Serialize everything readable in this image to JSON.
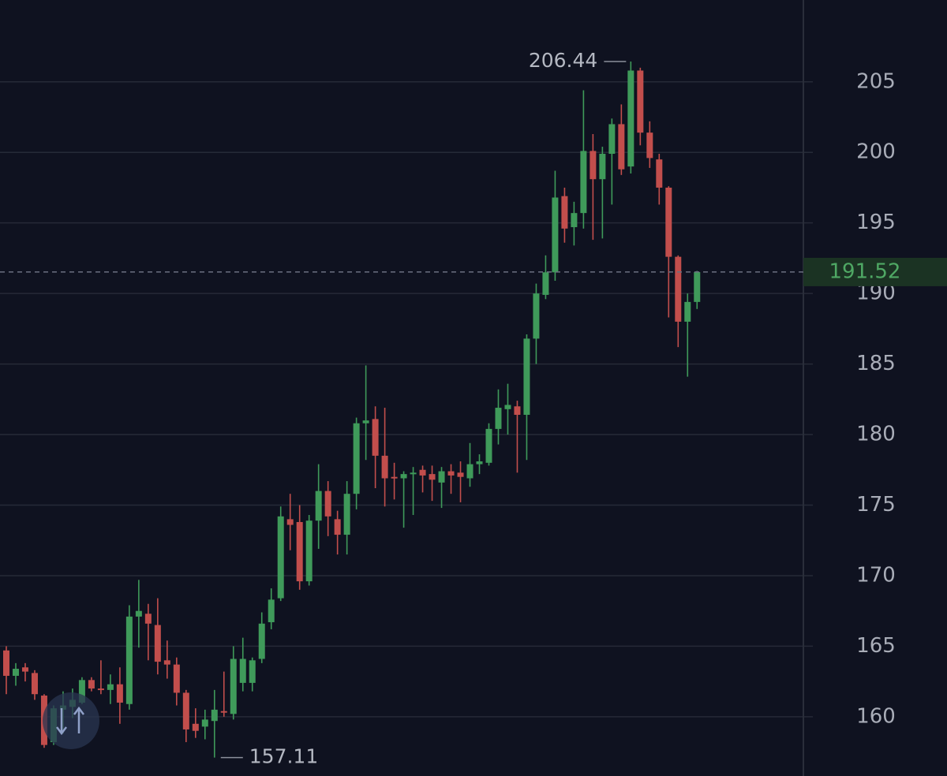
{
  "chart_data": {
    "type": "candlestick",
    "up_color": "#3f9a5a",
    "down_color": "#c24e4c",
    "grid": true,
    "ylim": [
      155.8,
      210.8
    ],
    "yticks": [
      160,
      165,
      170,
      175,
      180,
      185,
      190,
      195,
      200,
      205
    ],
    "last_price": 191.52,
    "max_label": 206.44,
    "min_label": 157.11,
    "open": [
      164.7,
      162.9,
      163.5,
      163.1,
      161.5,
      158.2,
      160.5,
      160.7,
      161.0,
      162.6,
      162.0,
      161.9,
      162.3,
      160.9,
      167.1,
      167.3,
      166.5,
      164.0,
      163.7,
      161.7,
      159.5,
      159.3,
      159.7,
      160.4,
      160.2,
      162.4,
      162.4,
      164.1,
      166.7,
      168.4,
      174.0,
      173.8,
      169.6,
      173.9,
      176.0,
      174.0,
      172.9,
      175.8,
      180.8,
      181.1,
      178.5,
      177.0,
      176.9,
      177.2,
      177.5,
      177.2,
      176.6,
      177.4,
      177.3,
      176.9,
      177.9,
      178.0,
      180.4,
      181.8,
      182.0,
      181.4,
      186.8,
      189.9,
      191.5,
      196.9,
      194.7,
      195.7,
      200.1,
      198.1,
      199.9,
      202.0,
      199.0,
      205.8,
      201.4,
      199.5,
      197.5,
      192.6,
      188.0,
      189.4
    ],
    "high": [
      165.0,
      163.8,
      163.8,
      163.3,
      161.6,
      160.8,
      161.8,
      162.0,
      162.8,
      162.8,
      164.0,
      163.0,
      163.5,
      167.9,
      169.7,
      168.0,
      168.4,
      165.4,
      164.2,
      161.9,
      160.6,
      160.5,
      161.9,
      163.2,
      165.0,
      165.6,
      164.2,
      167.4,
      169.1,
      174.9,
      175.8,
      175.0,
      174.3,
      177.9,
      176.7,
      174.6,
      176.7,
      181.2,
      184.9,
      182.0,
      181.9,
      178.0,
      177.4,
      177.7,
      177.8,
      177.8,
      177.7,
      177.9,
      178.1,
      179.4,
      178.6,
      180.8,
      183.2,
      183.6,
      182.4,
      187.1,
      190.7,
      192.7,
      198.7,
      197.5,
      196.5,
      204.4,
      201.3,
      200.4,
      202.4,
      203.4,
      206.44,
      206.0,
      202.2,
      199.9,
      197.6,
      192.7,
      190.0,
      191.6
    ],
    "low": [
      161.6,
      162.2,
      162.5,
      161.2,
      157.8,
      158.0,
      158.8,
      159.9,
      160.9,
      161.8,
      161.6,
      160.9,
      159.5,
      160.5,
      164.9,
      164.0,
      163.0,
      162.7,
      160.8,
      158.2,
      158.5,
      158.4,
      157.11,
      160.0,
      159.8,
      161.8,
      161.8,
      163.8,
      166.2,
      168.2,
      171.8,
      169.0,
      169.3,
      171.9,
      172.8,
      171.5,
      171.5,
      174.7,
      178.2,
      176.2,
      174.9,
      175.4,
      173.4,
      174.3,
      175.9,
      175.3,
      174.8,
      175.8,
      175.2,
      176.3,
      177.2,
      177.8,
      179.3,
      180.0,
      177.3,
      178.2,
      185.0,
      189.6,
      190.9,
      193.6,
      193.4,
      194.6,
      193.8,
      193.9,
      196.3,
      198.4,
      198.5,
      200.5,
      198.9,
      196.3,
      188.3,
      186.2,
      184.1,
      188.9
    ],
    "close": [
      162.9,
      163.4,
      163.2,
      161.6,
      158.0,
      160.6,
      160.8,
      161.2,
      162.6,
      162.0,
      161.9,
      162.3,
      161.0,
      167.1,
      167.5,
      166.6,
      163.9,
      163.7,
      161.7,
      159.1,
      159.0,
      159.8,
      160.5,
      160.3,
      164.1,
      164.1,
      164.0,
      166.6,
      168.3,
      174.2,
      173.6,
      169.6,
      173.9,
      176.0,
      174.2,
      172.9,
      175.8,
      180.8,
      181.0,
      178.5,
      176.9,
      176.9,
      177.2,
      177.3,
      177.1,
      176.8,
      177.4,
      177.1,
      177.0,
      177.9,
      178.1,
      180.4,
      181.9,
      182.1,
      181.4,
      186.8,
      190.0,
      191.5,
      196.8,
      194.6,
      195.7,
      200.1,
      198.1,
      199.9,
      202.0,
      198.8,
      205.8,
      201.4,
      199.6,
      197.5,
      192.6,
      188.0,
      189.4,
      191.52
    ]
  }
}
